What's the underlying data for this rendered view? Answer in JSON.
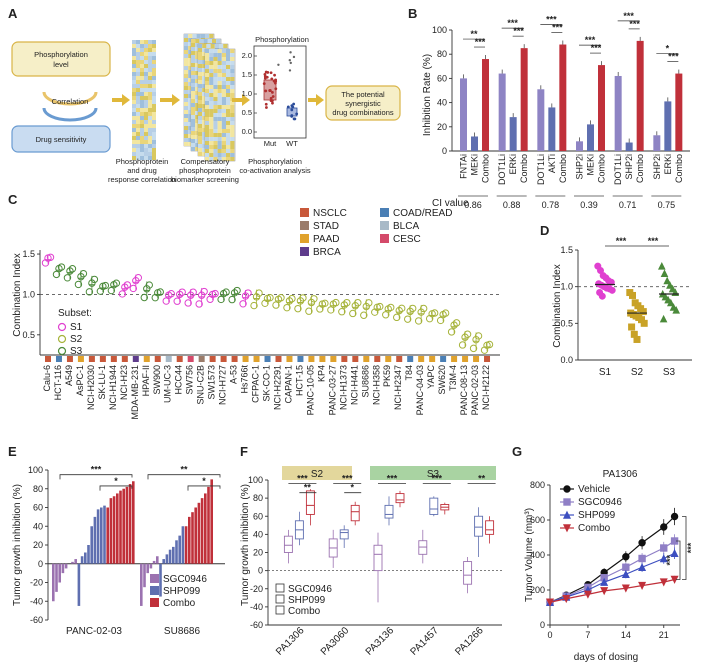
{
  "panels": {
    "A": {
      "label": "A",
      "boxes": {
        "phos": "Phosphorylation level",
        "corr": "Correlation",
        "drug": "Drug sensitivity"
      },
      "captions": [
        "Phosphoprotein and drug response correlation",
        "Compensatory phosphoprotein biomarker screening",
        "Phosphorylation co-activation analysis"
      ],
      "inset": {
        "title": "Phosphorylation",
        "yticks": [
          "2.0",
          "1.5",
          "1.0",
          "0.5",
          "0.0"
        ],
        "groups": [
          "Mut",
          "WT"
        ]
      },
      "result": "The potential synergistic drug combinations"
    },
    "B": {
      "label": "B",
      "ylabel": "Inhibition Rate (%)",
      "ci_label": "CI value",
      "chart_data": {
        "type": "bar",
        "ylim": [
          0,
          100
        ],
        "yticks": [
          0,
          20,
          40,
          60,
          80,
          100
        ],
        "groups": [
          {
            "categories": [
              "FNTAi",
              "MEKi",
              "Combo"
            ],
            "values": [
              60,
              12,
              76
            ],
            "colors": [
              "#8e84c4",
              "#5f6fb0",
              "#c0303a"
            ],
            "sig": [
              "**",
              "***"
            ],
            "ci": "0.86"
          },
          {
            "categories": [
              "DOT1Li",
              "ERKi",
              "Combo"
            ],
            "values": [
              64,
              28,
              85
            ],
            "colors": [
              "#8e84c4",
              "#5f6fb0",
              "#c0303a"
            ],
            "sig": [
              "***",
              "***"
            ],
            "ci": "0.88"
          },
          {
            "categories": [
              "DOT1Li",
              "AKTi",
              "Combo"
            ],
            "values": [
              51,
              36,
              88
            ],
            "colors": [
              "#8e84c4",
              "#5f6fb0",
              "#c0303a"
            ],
            "sig": [
              "***",
              "***"
            ],
            "ci": "0.78"
          },
          {
            "categories": [
              "SHP2i",
              "MEKi",
              "Combo"
            ],
            "values": [
              8,
              22,
              71
            ],
            "colors": [
              "#8e84c4",
              "#5f6fb0",
              "#c0303a"
            ],
            "sig": [
              "***",
              "***"
            ],
            "ci": "0.39"
          },
          {
            "categories": [
              "DOT1Li",
              "SHP2i",
              "Combo"
            ],
            "values": [
              62,
              7,
              91
            ],
            "colors": [
              "#8e84c4",
              "#5f6fb0",
              "#c0303a"
            ],
            "sig": [
              "***",
              "***"
            ],
            "ci": "0.71"
          },
          {
            "categories": [
              "SHP2i",
              "ERKi",
              "Combo"
            ],
            "values": [
              13,
              41,
              64
            ],
            "colors": [
              "#8e84c4",
              "#5f6fb0",
              "#c0303a"
            ],
            "sig": [
              "*",
              "***"
            ],
            "ci": "0.75"
          }
        ]
      }
    },
    "C": {
      "label": "C",
      "ylabel": "Combination Index",
      "subset_title": "Subset:",
      "legend": [
        {
          "name": "NSCLC",
          "color": "#c8583a"
        },
        {
          "name": "COAD/READ",
          "color": "#4a7fb5"
        },
        {
          "name": "STAD",
          "color": "#9b7c6a"
        },
        {
          "name": "BLCA",
          "color": "#a8b9c7"
        },
        {
          "name": "PAAD",
          "color": "#e0a22c"
        },
        {
          "name": "CESC",
          "color": "#d44a6a"
        },
        {
          "name": "BRCA",
          "color": "#5e3c8c"
        }
      ],
      "chart_data": {
        "type": "scatter",
        "ylim": [
          0.25,
          1.55
        ],
        "yticks": [
          0.5,
          1.0,
          1.5
        ],
        "reference_line": 1.0,
        "subsets": [
          {
            "name": "S1",
            "color": "#e040d0"
          },
          {
            "name": "S2",
            "color": "#a6b33a"
          },
          {
            "name": "S3",
            "color": "#4b8a3a"
          }
        ],
        "cell_lines": [
          "Calu-6",
          "HCT-116",
          "A549",
          "AsPC-1",
          "NCI-H2030",
          "SK-LU-1",
          "NCI-H1944",
          "NCI-H23",
          "MDA-MB-231",
          "HPAF-II",
          "SW900",
          "UM-UC-3",
          "HCC44",
          "SW756",
          "SNU-C2B",
          "SW1573",
          "NCI-H727",
          "A-53",
          "Hs766t",
          "CFPAC-1",
          "SK-CO-1",
          "NCI-H2291",
          "CAPAN-1",
          "HCT-15",
          "PANC-10-05",
          "KP4",
          "PANC-03-27",
          "NCI-H1373",
          "NCI-H441",
          "SU8686",
          "NCI-H358",
          "PK59",
          "NCI-H2347",
          "T84",
          "PANC-04-03",
          "YAPC",
          "SW620",
          "T3M-4",
          "PANC-08-13",
          "PANC-02-03",
          "NCI-H2122"
        ],
        "cell_line_colors": [
          "#c8583a",
          "#4a7fb5",
          "#c8583a",
          "#e0a22c",
          "#c8583a",
          "#c8583a",
          "#c8583a",
          "#c8583a",
          "#5e3c8c",
          "#e0a22c",
          "#c8583a",
          "#a8b9c7",
          "#c8583a",
          "#d44a6a",
          "#9b7c6a",
          "#c8583a",
          "#c8583a",
          "#c8583a",
          "#e0a22c",
          "#e0a22c",
          "#4a7fb5",
          "#c8583a",
          "#e0a22c",
          "#4a7fb5",
          "#e0a22c",
          "#e0a22c",
          "#e0a22c",
          "#c8583a",
          "#c8583a",
          "#e0a22c",
          "#c8583a",
          "#e0a22c",
          "#c8583a",
          "#4a7fb5",
          "#e0a22c",
          "#e0a22c",
          "#4a7fb5",
          "#e0a22c",
          "#e0a22c",
          "#e0a22c",
          "#c8583a"
        ],
        "means": [
          1.43,
          1.3,
          1.27,
          1.2,
          1.12,
          1.08,
          1.1,
          1.07,
          1.15,
          1.05,
          1.0,
          0.97,
          0.98,
          0.97,
          0.97,
          0.98,
          0.99,
          1.0,
          0.96,
          0.95,
          0.93,
          0.92,
          0.9,
          0.9,
          0.88,
          0.86,
          0.86,
          0.85,
          0.84,
          0.83,
          0.82,
          0.8,
          0.78,
          0.77,
          0.76,
          0.74,
          0.73,
          0.6,
          0.45,
          0.42,
          0.35
        ],
        "subset_index": [
          0,
          2,
          2,
          2,
          2,
          2,
          2,
          0,
          0,
          2,
          2,
          0,
          0,
          0,
          0,
          0,
          2,
          2,
          0,
          1,
          1,
          1,
          1,
          1,
          1,
          1,
          1,
          1,
          1,
          1,
          1,
          1,
          1,
          1,
          1,
          1,
          1,
          1,
          1,
          1,
          1
        ]
      }
    },
    "D": {
      "label": "D",
      "ylabel": "Combination Index",
      "chart_data": {
        "type": "scatter",
        "ylim": [
          0.0,
          1.5
        ],
        "yticks": [
          0.0,
          0.5,
          1.0,
          1.5
        ],
        "reference_line": 1.0,
        "categories": [
          "S1",
          "S2",
          "S3"
        ],
        "colors": [
          "#e040d0",
          "#c9a227",
          "#4b8a3a"
        ],
        "markers": [
          "circle",
          "square",
          "triangle"
        ],
        "means": [
          1.03,
          0.64,
          0.9
        ],
        "points": [
          [
            1.28,
            1.22,
            1.15,
            1.12,
            1.08,
            1.06,
            1.04,
            1.02,
            1.0,
            0.98,
            0.97,
            0.95,
            0.92,
            0.87
          ],
          [
            0.92,
            0.88,
            0.78,
            0.74,
            0.7,
            0.66,
            0.64,
            0.62,
            0.6,
            0.58,
            0.55,
            0.5,
            0.45,
            0.35,
            0.28
          ],
          [
            1.28,
            1.18,
            1.08,
            1.02,
            0.97,
            0.92,
            0.9,
            0.86,
            0.82,
            0.78,
            0.72,
            0.68,
            0.56
          ]
        ],
        "sig": [
          "***",
          "***"
        ]
      }
    },
    "E": {
      "label": "E",
      "ylabel": "Tumor growth inhibition (%)",
      "legend": [
        {
          "name": "SGC0946",
          "color": "#9b72b0"
        },
        {
          "name": "SHP099",
          "color": "#5f6fb0"
        },
        {
          "name": "Combo",
          "color": "#c0303a"
        }
      ],
      "chart_data": {
        "type": "bar",
        "ylim": [
          -60,
          100
        ],
        "yticks": [
          -60,
          -40,
          -20,
          0,
          20,
          40,
          60,
          80,
          100
        ],
        "groups": [
          {
            "name": "PANC-02-03",
            "SGC0946": [
              -40,
              -30,
              -20,
              -10,
              -5,
              0,
              2,
              5
            ],
            "SHP099": [
              -45,
              8,
              12,
              20,
              40,
              50,
              58,
              60,
              62
            ],
            "Combo": [
              60,
              70,
              72,
              75,
              78,
              80,
              82,
              85,
              88
            ],
            "sig": [
              "***",
              "*"
            ]
          },
          {
            "name": "SU8686",
            "SGC0946": [
              -45,
              -25,
              -10,
              -5,
              3,
              8
            ],
            "SHP099": [
              -35,
              5,
              10,
              15,
              18,
              25,
              30,
              40
            ],
            "Combo": [
              40,
              50,
              55,
              60,
              65,
              70,
              75,
              82,
              90
            ],
            "sig": [
              "**",
              "*"
            ]
          }
        ]
      }
    },
    "F": {
      "label": "F",
      "ylabel": "Tumor growth inhibition (%)",
      "headers": [
        {
          "name": "S2",
          "color": "#e3d79c"
        },
        {
          "name": "S3",
          "color": "#a9d3a2"
        }
      ],
      "legend": [
        {
          "name": "SGC0946",
          "color": "#9b72b0"
        },
        {
          "name": "SHP099",
          "color": "#5f6fb0"
        },
        {
          "name": "Combo",
          "color": "#c0303a"
        }
      ],
      "chart_data": {
        "type": "box",
        "ylim": [
          -60,
          100
        ],
        "yticks": [
          -60,
          -40,
          -20,
          0,
          20,
          40,
          60,
          80,
          100
        ],
        "categories": [
          "PA1306",
          "PA3060",
          "PA3136",
          "PA1457",
          "PA1266"
        ],
        "boxes": [
          [
            [
              8,
              20,
              28,
              38,
              45
            ],
            [
              28,
              35,
              45,
              55,
              65
            ],
            [
              50,
              62,
              72,
              88,
              90
            ]
          ],
          [
            [
              3,
              15,
              25,
              35,
              45
            ],
            [
              25,
              35,
              42,
              45,
              50
            ],
            [
              50,
              55,
              65,
              72,
              76
            ]
          ],
          [
            [
              -35,
              0,
              18,
              28,
              42
            ],
            [
              50,
              58,
              62,
              72,
              82
            ],
            [
              70,
              75,
              78,
              85,
              88
            ]
          ],
          [
            [
              8,
              18,
              26,
              33,
              45
            ],
            [
              60,
              62,
              68,
              80,
              82
            ],
            [
              62,
              67,
              70,
              73,
              75
            ]
          ],
          [
            [
              -25,
              -15,
              -5,
              10,
              15
            ],
            [
              15,
              38,
              48,
              60,
              70
            ],
            [
              30,
              40,
              45,
              55,
              60
            ]
          ]
        ],
        "sig": [
          [
            "***",
            "**"
          ],
          [
            "***",
            "*"
          ],
          [
            "***"
          ],
          [
            "***"
          ],
          [
            "**"
          ]
        ]
      }
    },
    "G": {
      "label": "G",
      "title": "PA1306",
      "ylabel": "Tumor Volume (mm³)",
      "xlabel": "days of dosing",
      "legend": [
        {
          "name": "Vehicle",
          "color": "#111111",
          "marker": "circle"
        },
        {
          "name": "SGC0946",
          "color": "#8f7fc6",
          "marker": "square"
        },
        {
          "name": "SHP099",
          "color": "#3d4fc0",
          "marker": "triangle"
        },
        {
          "name": "Combo",
          "color": "#c0303a",
          "marker": "triangle-down"
        }
      ],
      "chart_data": {
        "type": "line",
        "ylim": [
          0,
          800
        ],
        "yticks": [
          0,
          200,
          400,
          600,
          800
        ],
        "xlim": [
          0,
          24
        ],
        "xticks": [
          0,
          7,
          14,
          21
        ],
        "x": [
          0,
          3,
          7,
          10,
          14,
          17,
          21,
          23
        ],
        "series": [
          {
            "name": "Vehicle",
            "values": [
              130,
              170,
              230,
              300,
              390,
              470,
              560,
              620
            ]
          },
          {
            "name": "SGC0946",
            "values": [
              130,
              165,
              215,
              270,
              330,
              380,
              440,
              480
            ]
          },
          {
            "name": "SHP099",
            "values": [
              130,
              160,
              200,
              245,
              290,
              330,
              380,
              410
            ]
          },
          {
            "name": "Combo",
            "values": [
              130,
              150,
              175,
              195,
              210,
              225,
              245,
              260
            ]
          }
        ],
        "sig": [
          "***",
          "***"
        ]
      }
    }
  }
}
